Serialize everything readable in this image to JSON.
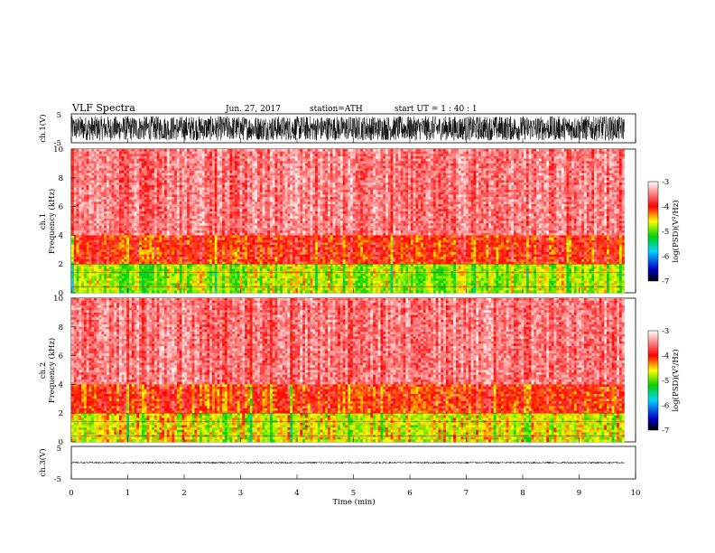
{
  "header": {
    "title": "VLF Spectra",
    "date": "Jun. 27, 2017",
    "station": "station=ATH",
    "start": "start UT =  1 : 40 : 1"
  },
  "chart_data": [
    {
      "type": "line",
      "name": "ch1-waveform",
      "ylabel": "ch.1(V)",
      "ylim": [
        -5,
        5
      ],
      "yticks": [
        "5",
        "-5"
      ],
      "xlim": [
        0,
        10
      ],
      "description_values": {
        "amplitude_range": [
          -4.2,
          4.2
        ],
        "duration_min": 9.8
      }
    },
    {
      "type": "heatmap",
      "name": "ch1-spectrogram",
      "ylabel": "ch.1",
      "ylabel2": "Frequency (kHz)",
      "ylim": [
        0,
        10
      ],
      "yticks": [
        "0",
        "2",
        "4",
        "6",
        "8",
        "10"
      ],
      "xlim": [
        0,
        9.8
      ],
      "colorbar": {
        "label": "log(PSD)(V²/Hz)",
        "range": [
          -7,
          -3
        ],
        "ticks": [
          "-3",
          "-4",
          "-5",
          "-6",
          "-7"
        ]
      },
      "bands": [
        {
          "freq_khz": [
            0,
            2
          ],
          "log_psd": -4.8
        },
        {
          "freq_khz": [
            2,
            4
          ],
          "log_psd": -4.0
        },
        {
          "freq_khz": [
            4,
            10
          ],
          "log_psd": -3.5
        }
      ]
    },
    {
      "type": "heatmap",
      "name": "ch2-spectrogram",
      "ylabel": "ch.2",
      "ylabel2": "Frequency (kHz)",
      "ylim": [
        0,
        10
      ],
      "yticks": [
        "0",
        "2",
        "4",
        "6",
        "8",
        "10"
      ],
      "xlim": [
        0,
        9.8
      ],
      "colorbar": {
        "label": "log(PSD)(V²/Hz)",
        "range": [
          -7,
          -3
        ],
        "ticks": [
          "-3",
          "-4",
          "-5",
          "-6",
          "-7"
        ]
      },
      "bands": [
        {
          "freq_khz": [
            0,
            2
          ],
          "log_psd": -4.6
        },
        {
          "freq_khz": [
            2,
            4
          ],
          "log_psd": -4.0
        },
        {
          "freq_khz": [
            4,
            10
          ],
          "log_psd": -3.5
        }
      ]
    },
    {
      "type": "line",
      "name": "ch3-waveform",
      "ylabel": "ch.3(V)",
      "ylim": [
        -5,
        5
      ],
      "yticks": [
        "5",
        "-5"
      ],
      "xlim": [
        0,
        10
      ],
      "xlabel": "Time (min)",
      "xticks": [
        "0",
        "1",
        "2",
        "3",
        "4",
        "5",
        "6",
        "7",
        "8",
        "9",
        "10"
      ],
      "description_values": {
        "amplitude_range": [
          -0.3,
          0.3
        ],
        "duration_min": 9.8
      }
    }
  ]
}
